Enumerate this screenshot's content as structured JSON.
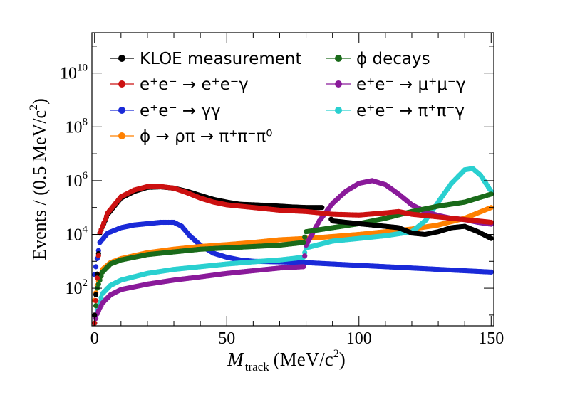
{
  "chart_data": {
    "type": "scatter",
    "xlabel_main": "M",
    "xlabel_sub": "track",
    "xlabel_unit": "(MeV/c",
    "xlabel_unit_sup": "2",
    "xlabel_unit_close": ")",
    "ylabel_main": "Events / (0.5 MeV/c",
    "ylabel_sup": "2",
    "ylabel_close": ")",
    "xlim": [
      -1,
      151
    ],
    "ylog": true,
    "ylim_log10": [
      0.6,
      11.5
    ],
    "x_ticks": [
      {
        "value": 0,
        "label": "0"
      },
      {
        "value": 50,
        "label": "50"
      },
      {
        "value": 100,
        "label": "100"
      },
      {
        "value": 150,
        "label": "150"
      }
    ],
    "y_ticks": [
      {
        "exp": 2,
        "base": "10",
        "sup": "2"
      },
      {
        "exp": 4,
        "base": "10",
        "sup": "4"
      },
      {
        "exp": 6,
        "base": "10",
        "sup": "6"
      },
      {
        "exp": 8,
        "base": "10",
        "sup": "8"
      },
      {
        "exp": 10,
        "base": "10",
        "sup": "10"
      }
    ],
    "grid": false,
    "legend_position": "top",
    "series": [
      {
        "name": "KLOE measurement",
        "color": "#000000",
        "legend_col": 0,
        "legend_row": 0,
        "x_range": [
          0,
          150
        ],
        "points": [
          [
            0,
            1
          ],
          [
            2,
            4.05
          ],
          [
            5,
            4.75
          ],
          [
            10,
            5.35
          ],
          [
            15,
            5.6
          ],
          [
            20,
            5.75
          ],
          [
            25,
            5.77
          ],
          [
            30,
            5.72
          ],
          [
            35,
            5.6
          ],
          [
            40,
            5.45
          ],
          [
            45,
            5.3
          ],
          [
            50,
            5.2
          ],
          [
            55,
            5.12
          ],
          [
            60,
            5.1
          ],
          [
            65,
            5.08
          ],
          [
            70,
            5.05
          ],
          [
            75,
            5.02
          ],
          [
            80,
            5.0
          ],
          [
            86,
            5.0
          ],
          [
            90,
            4.5
          ],
          [
            95,
            4.45
          ],
          [
            100,
            4.4
          ],
          [
            105,
            4.35
          ],
          [
            110,
            4.3
          ],
          [
            115,
            4.25
          ],
          [
            120,
            4.05
          ],
          [
            125,
            4.0
          ],
          [
            130,
            4.1
          ],
          [
            135,
            4.25
          ],
          [
            140,
            4.3
          ],
          [
            145,
            4.1
          ],
          [
            150,
            3.85
          ]
        ]
      },
      {
        "name": "φ decays",
        "color": "#1a6b1a",
        "legend_col": 1,
        "legend_row": 0,
        "x_range": [
          0,
          150
        ],
        "points": [
          [
            0,
            0.7
          ],
          [
            1,
            2.0
          ],
          [
            3,
            2.6
          ],
          [
            6,
            2.9
          ],
          [
            10,
            3.05
          ],
          [
            20,
            3.25
          ],
          [
            30,
            3.35
          ],
          [
            40,
            3.45
          ],
          [
            50,
            3.5
          ],
          [
            60,
            3.55
          ],
          [
            70,
            3.6
          ],
          [
            79,
            3.7
          ],
          [
            80,
            4.1
          ],
          [
            90,
            4.25
          ],
          [
            100,
            4.4
          ],
          [
            110,
            4.6
          ],
          [
            120,
            4.85
          ],
          [
            130,
            5.05
          ],
          [
            140,
            5.2
          ],
          [
            150,
            5.5
          ]
        ]
      },
      {
        "name": "e⁺e⁻ → e⁺e⁻γ",
        "color": "#cc1111",
        "legend_col": 0,
        "legend_row": 1,
        "x_range": [
          0,
          150
        ],
        "points": [
          [
            0,
            0.7
          ],
          [
            2,
            4.05
          ],
          [
            5,
            4.8
          ],
          [
            10,
            5.4
          ],
          [
            15,
            5.65
          ],
          [
            20,
            5.78
          ],
          [
            25,
            5.78
          ],
          [
            30,
            5.72
          ],
          [
            35,
            5.55
          ],
          [
            40,
            5.35
          ],
          [
            45,
            5.2
          ],
          [
            50,
            5.1
          ],
          [
            60,
            5.0
          ],
          [
            70,
            4.9
          ],
          [
            80,
            4.85
          ],
          [
            90,
            4.75
          ],
          [
            100,
            4.72
          ],
          [
            110,
            4.8
          ],
          [
            115,
            4.85
          ],
          [
            120,
            4.75
          ],
          [
            130,
            4.65
          ],
          [
            140,
            4.55
          ],
          [
            150,
            4.45
          ]
        ]
      },
      {
        "name": "e⁺e⁻ → μ⁺μ⁻γ",
        "color": "#8a1a9a",
        "legend_col": 1,
        "legend_row": 1,
        "x_range": [
          0,
          150
        ],
        "points": [
          [
            0,
            0.7
          ],
          [
            1,
            1.05
          ],
          [
            3,
            1.45
          ],
          [
            6,
            1.75
          ],
          [
            10,
            1.95
          ],
          [
            20,
            2.15
          ],
          [
            30,
            2.3
          ],
          [
            40,
            2.42
          ],
          [
            50,
            2.55
          ],
          [
            60,
            2.65
          ],
          [
            70,
            2.75
          ],
          [
            79,
            2.8
          ],
          [
            80,
            3.6
          ],
          [
            85,
            4.5
          ],
          [
            90,
            5.15
          ],
          [
            95,
            5.6
          ],
          [
            100,
            5.9
          ],
          [
            105,
            6.0
          ],
          [
            110,
            5.85
          ],
          [
            115,
            5.5
          ],
          [
            120,
            5.1
          ],
          [
            125,
            4.85
          ],
          [
            130,
            4.7
          ],
          [
            135,
            4.6
          ],
          [
            140,
            4.55
          ],
          [
            145,
            4.45
          ],
          [
            150,
            4.38
          ]
        ]
      },
      {
        "name": "e⁺e⁻ → γγ",
        "color": "#1a2ad8",
        "legend_col": 0,
        "legend_row": 2,
        "x_range": [
          0,
          150
        ],
        "points": [
          [
            0,
            2.5
          ],
          [
            2,
            3.7
          ],
          [
            5,
            4.05
          ],
          [
            10,
            4.25
          ],
          [
            15,
            4.35
          ],
          [
            20,
            4.4
          ],
          [
            25,
            4.45
          ],
          [
            30,
            4.45
          ],
          [
            33,
            4.3
          ],
          [
            36,
            3.95
          ],
          [
            40,
            3.6
          ],
          [
            45,
            3.3
          ],
          [
            50,
            3.15
          ],
          [
            55,
            3.05
          ],
          [
            60,
            3.0
          ],
          [
            70,
            2.98
          ],
          [
            80,
            2.95
          ],
          [
            90,
            2.9
          ],
          [
            100,
            2.85
          ],
          [
            110,
            2.8
          ],
          [
            120,
            2.75
          ],
          [
            130,
            2.7
          ],
          [
            140,
            2.65
          ],
          [
            150,
            2.6
          ]
        ]
      },
      {
        "name": "e⁺e⁻ → π⁺π⁻γ",
        "color": "#2ad0d0",
        "legend_col": 1,
        "legend_row": 2,
        "x_range": [
          0,
          150
        ],
        "points": [
          [
            0,
            0.7
          ],
          [
            1,
            1.2
          ],
          [
            3,
            1.8
          ],
          [
            6,
            2.1
          ],
          [
            10,
            2.3
          ],
          [
            20,
            2.55
          ],
          [
            30,
            2.7
          ],
          [
            40,
            2.8
          ],
          [
            50,
            2.9
          ],
          [
            60,
            2.98
          ],
          [
            70,
            3.05
          ],
          [
            79,
            3.15
          ],
          [
            80,
            3.5
          ],
          [
            90,
            3.75
          ],
          [
            100,
            3.85
          ],
          [
            110,
            3.95
          ],
          [
            120,
            4.1
          ],
          [
            125,
            4.5
          ],
          [
            130,
            5.2
          ],
          [
            135,
            5.9
          ],
          [
            140,
            6.4
          ],
          [
            143,
            6.45
          ],
          [
            146,
            6.2
          ],
          [
            150,
            5.6
          ]
        ]
      },
      {
        "name": "φ → ρπ → π⁺π⁻π⁰",
        "color": "#ff8000",
        "legend_col": 0,
        "legend_row": 3,
        "x_range": [
          0,
          150
        ],
        "points": [
          [
            0,
            1.55
          ],
          [
            1,
            2.1
          ],
          [
            3,
            2.7
          ],
          [
            6,
            2.95
          ],
          [
            10,
            3.1
          ],
          [
            20,
            3.32
          ],
          [
            30,
            3.45
          ],
          [
            40,
            3.55
          ],
          [
            50,
            3.62
          ],
          [
            60,
            3.7
          ],
          [
            70,
            3.8
          ],
          [
            80,
            3.85
          ],
          [
            90,
            3.92
          ],
          [
            100,
            4.0
          ],
          [
            110,
            4.1
          ],
          [
            120,
            4.2
          ],
          [
            130,
            4.35
          ],
          [
            140,
            4.6
          ],
          [
            150,
            5.0
          ]
        ]
      }
    ]
  },
  "legend": [
    {
      "text": "KLOE measurement"
    },
    {
      "text": "ϕ decays"
    },
    {
      "text": "e⁺e⁻ → e⁺e⁻γ"
    },
    {
      "text": "e⁺e⁻ → μ⁺μ⁻γ"
    },
    {
      "text": "e⁺e⁻ → γγ"
    },
    {
      "text": "e⁺e⁻ → π⁺π⁻γ"
    },
    {
      "text": "ϕ → ρπ → π⁺π⁻π⁰"
    }
  ]
}
